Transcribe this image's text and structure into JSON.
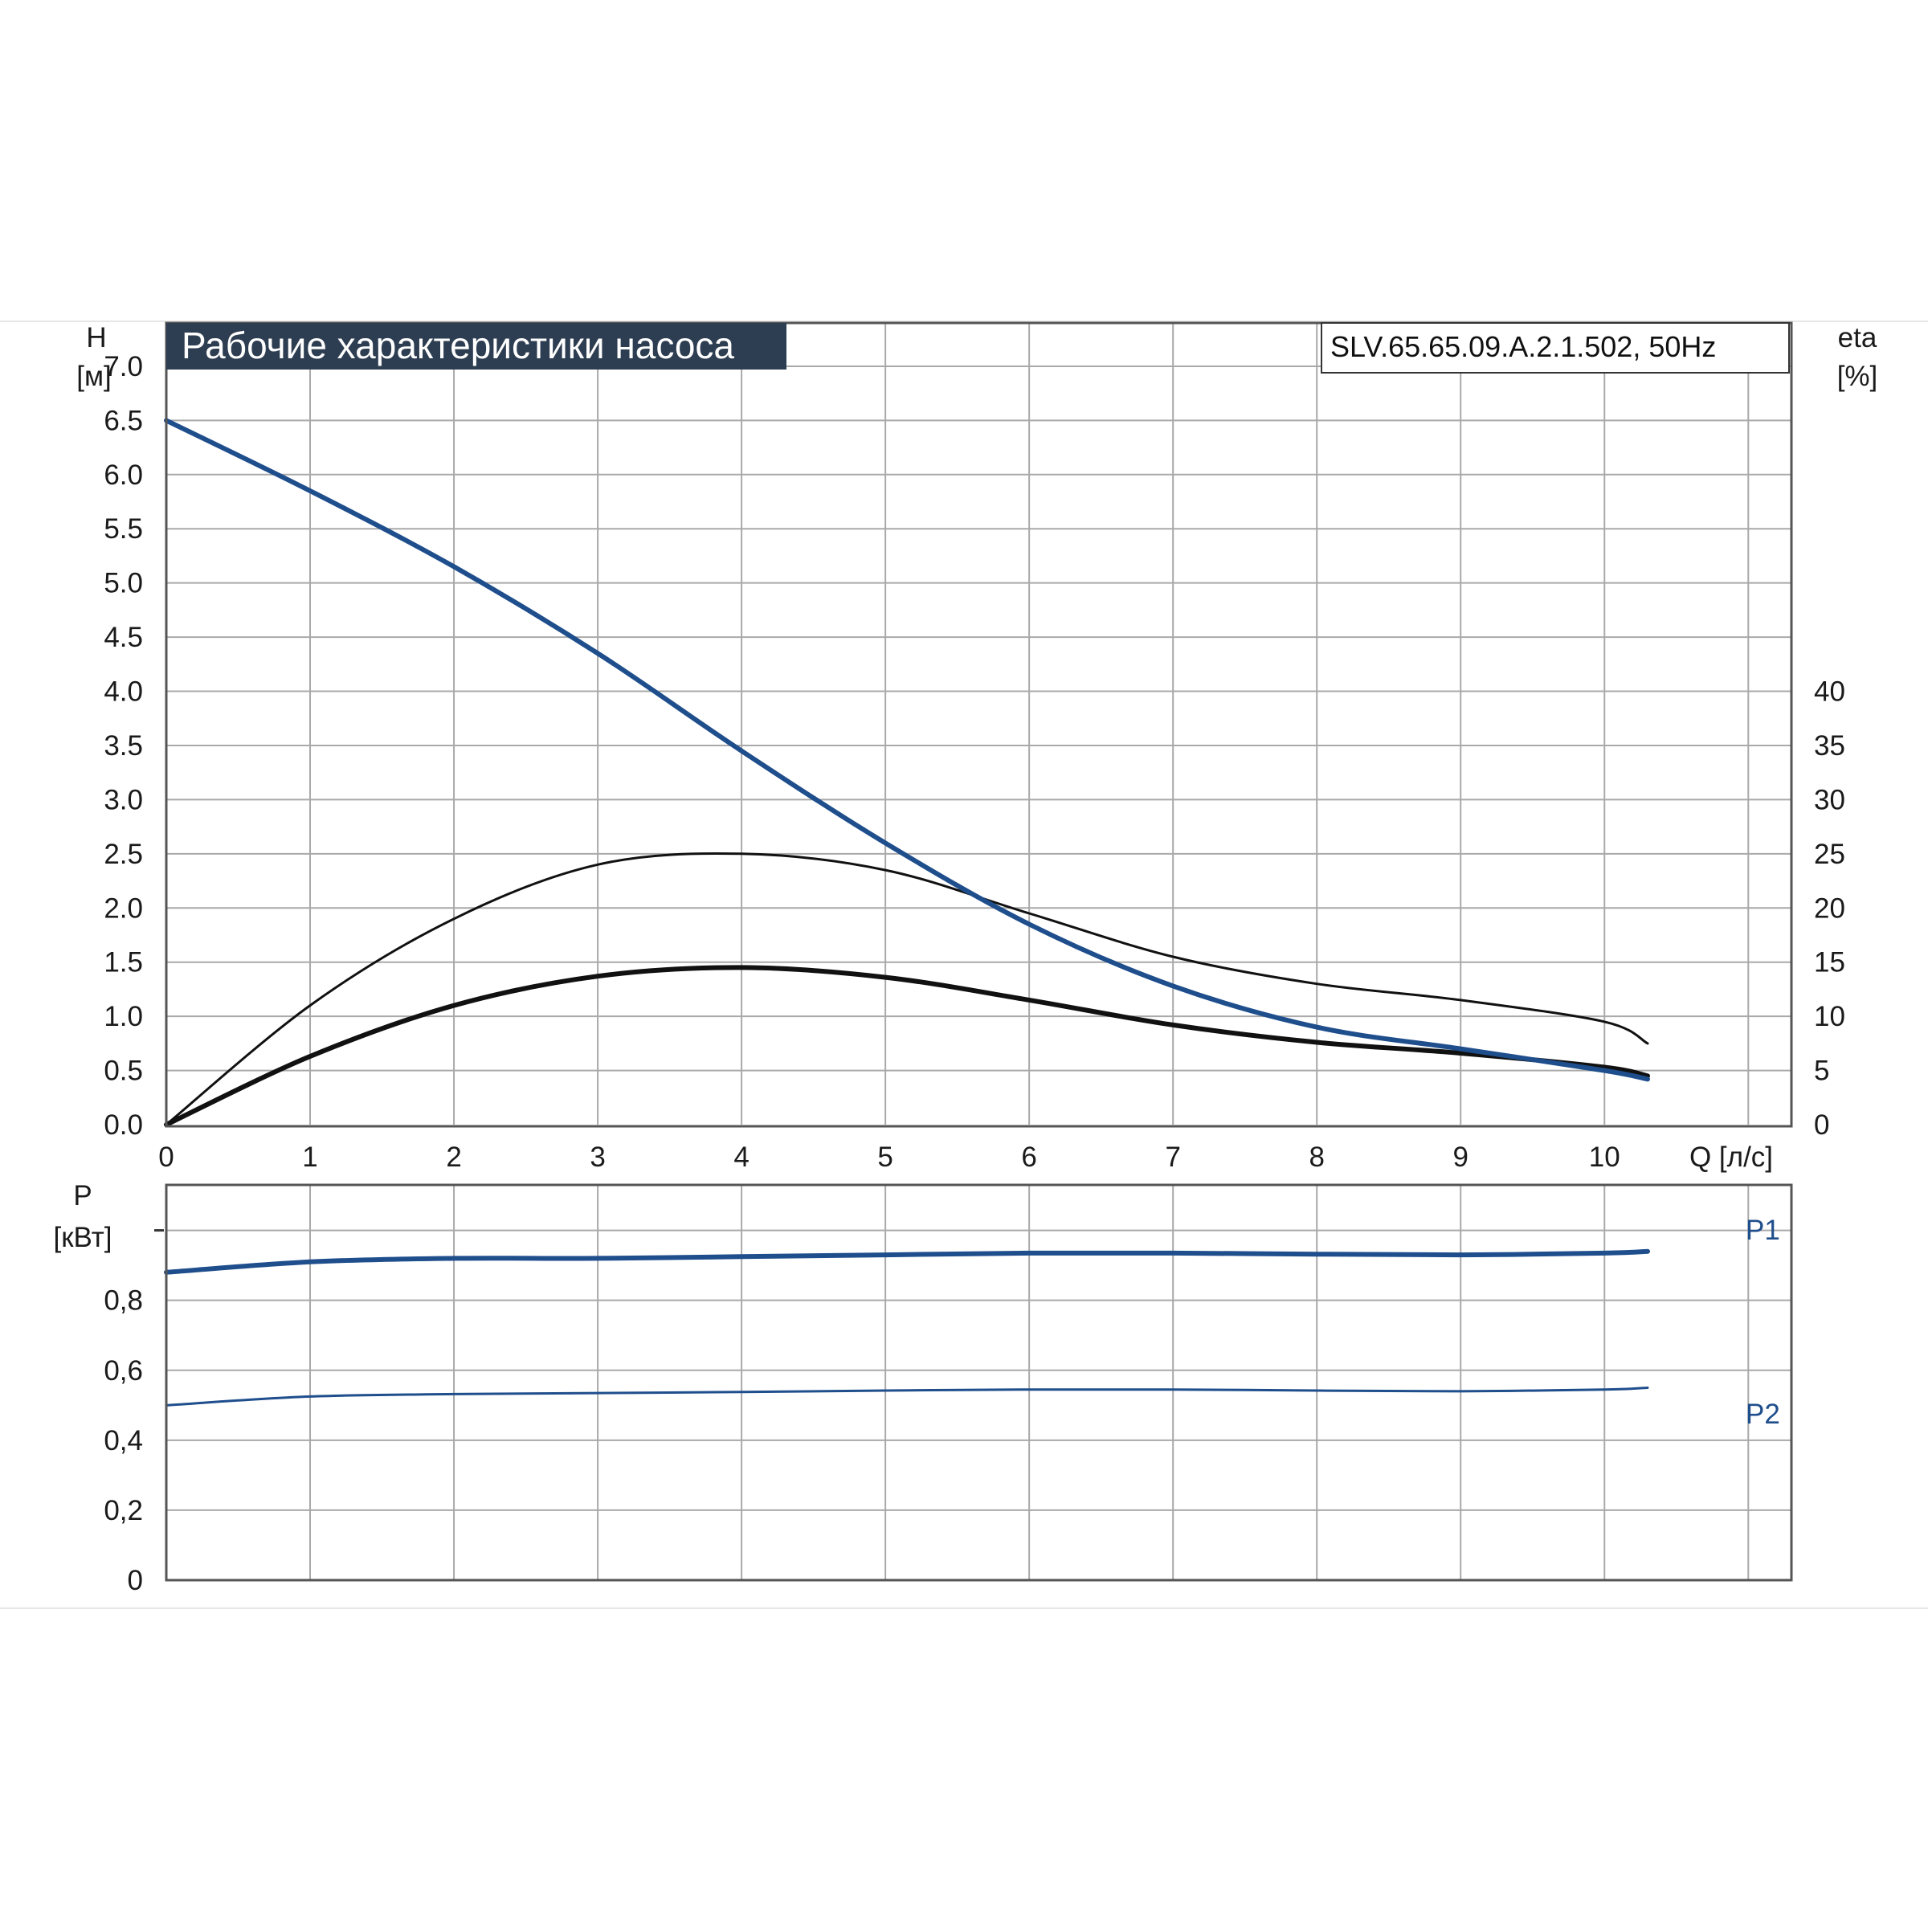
{
  "colors": {
    "blue": "#1f4e8c",
    "black": "#111111",
    "grid": "#a9a9a9",
    "title_bg": "#2e3e52",
    "rule": "#e6e6e6"
  },
  "chart_data": [
    {
      "type": "line",
      "title": "Рабочие характеристики насоса",
      "model_label": "SLV.65.65.09.A.2.1.502, 50Hz",
      "y_title": "H",
      "y_unit": "[м]",
      "right_title": "eta",
      "right_unit": "[%]",
      "x_title": "Q [л/с]",
      "xlim": [
        0,
        11.3
      ],
      "ylim": [
        0,
        7.4
      ],
      "right_lim": [
        0,
        74
      ],
      "grid": true,
      "x_ticks": [
        "0",
        "1",
        "2",
        "3",
        "4",
        "5",
        "6",
        "7",
        "8",
        "9",
        "10"
      ],
      "y_ticks": [
        "0.0",
        "0.5",
        "1.0",
        "1.5",
        "2.0",
        "2.5",
        "3.0",
        "3.5",
        "4.0",
        "4.5",
        "5.0",
        "5.5",
        "6.0",
        "6.5",
        "7.0"
      ],
      "right_ticks": [
        "0",
        "5",
        "10",
        "15",
        "20",
        "25",
        "30",
        "35",
        "40"
      ],
      "series": [
        {
          "axis": "left",
          "color": "#1f4e8c",
          "x": [
            0,
            1,
            2,
            3,
            4,
            5,
            6,
            7,
            8,
            9,
            10,
            10.3
          ],
          "y": [
            6.5,
            5.85,
            5.15,
            4.35,
            3.45,
            2.6,
            1.85,
            1.28,
            0.9,
            0.7,
            0.5,
            0.42
          ]
        },
        {
          "axis": "right",
          "color": "#111111",
          "x": [
            0,
            1,
            2,
            3,
            4,
            5,
            6,
            7,
            8,
            9,
            10,
            10.3
          ],
          "y": [
            0,
            11,
            19,
            24,
            25,
            23.5,
            19.5,
            15.5,
            13,
            11.5,
            9.5,
            7.5
          ]
        },
        {
          "axis": "right",
          "color": "#111111",
          "x": [
            0,
            1,
            2,
            3,
            4,
            5,
            6,
            7,
            8,
            9,
            10,
            10.3
          ],
          "y": [
            0,
            6.3,
            11,
            13.7,
            14.5,
            13.6,
            11.5,
            9.2,
            7.6,
            6.6,
            5.3,
            4.5
          ]
        }
      ]
    },
    {
      "type": "line",
      "y_title": "P",
      "y_unit": "[кВт]",
      "xlim": [
        0,
        11.3
      ],
      "ylim": [
        0,
        1.13
      ],
      "grid": true,
      "y_ticks": [
        "0",
        "0,2",
        "0,4",
        "0,6",
        "0,8"
      ],
      "series": [
        {
          "name": "P1",
          "color": "#1f4e8c",
          "x": [
            0,
            1,
            2,
            3,
            4,
            5,
            6,
            7,
            8,
            9,
            10,
            10.3
          ],
          "y": [
            0.88,
            0.91,
            0.92,
            0.92,
            0.925,
            0.93,
            0.935,
            0.935,
            0.932,
            0.93,
            0.935,
            0.94
          ]
        },
        {
          "name": "P2",
          "color": "#1f4e8c",
          "x": [
            0,
            1,
            2,
            3,
            4,
            5,
            6,
            7,
            8,
            9,
            10,
            10.3
          ],
          "y": [
            0.5,
            0.525,
            0.532,
            0.535,
            0.538,
            0.542,
            0.545,
            0.545,
            0.542,
            0.54,
            0.545,
            0.55
          ]
        }
      ]
    }
  ]
}
